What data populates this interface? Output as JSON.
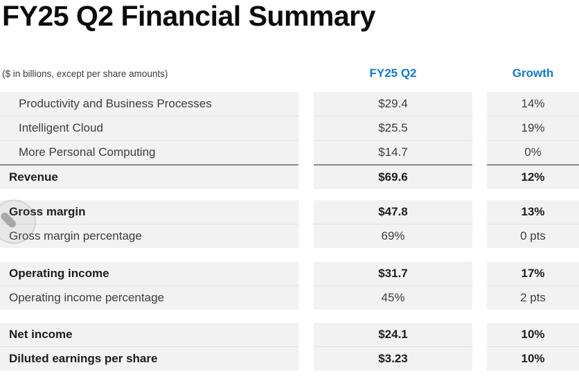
{
  "title": "FY25 Q2 Financial Summary",
  "table": {
    "note": "($ in billions, except per share amounts)",
    "columns": [
      "FY25 Q2",
      "Growth"
    ],
    "blocks": [
      {
        "rows": [
          {
            "label": "Productivity and Business Processes",
            "value": "$29.4",
            "growth": "14%",
            "indent": true,
            "bold": false,
            "top": "none"
          },
          {
            "label": "Intelligent Cloud",
            "value": "$25.5",
            "growth": "19%",
            "indent": true,
            "bold": false,
            "top": "light"
          },
          {
            "label": "More Personal Computing",
            "value": "$14.7",
            "growth": "0%",
            "indent": true,
            "bold": false,
            "top": "light"
          },
          {
            "label": "Revenue",
            "value": "$69.6",
            "growth": "12%",
            "indent": false,
            "bold": true,
            "top": "dark"
          }
        ]
      },
      {
        "rows": [
          {
            "label": "Gross margin",
            "value": "$47.8",
            "growth": "13%",
            "indent": false,
            "bold": true,
            "top": "none"
          },
          {
            "label": "Gross margin percentage",
            "value": "69%",
            "growth": "0 pts",
            "indent": false,
            "bold": false,
            "top": "light"
          }
        ]
      },
      {
        "rows": [
          {
            "label": "Operating income",
            "value": "$31.7",
            "growth": "17%",
            "indent": false,
            "bold": true,
            "top": "none"
          },
          {
            "label": "Operating income percentage",
            "value": "45%",
            "growth": "2 pts",
            "indent": false,
            "bold": false,
            "top": "light"
          }
        ]
      },
      {
        "rows": [
          {
            "label": "Net income",
            "value": "$24.1",
            "growth": "10%",
            "indent": false,
            "bold": true,
            "top": "none"
          },
          {
            "label": "Diluted earnings per share",
            "value": "$3.23",
            "growth": "10%",
            "indent": false,
            "bold": true,
            "top": "light"
          }
        ]
      }
    ]
  },
  "colors": {
    "accent_blue": "#0e7ad6",
    "row_background": "#f2f2f2",
    "dark_rule": "#8a8a8a",
    "light_rule": "#e1e1e1",
    "title_text": "#0d0d0d",
    "body_text": "#3d3d3d"
  },
  "watermark": {
    "name": "click-indicator"
  }
}
